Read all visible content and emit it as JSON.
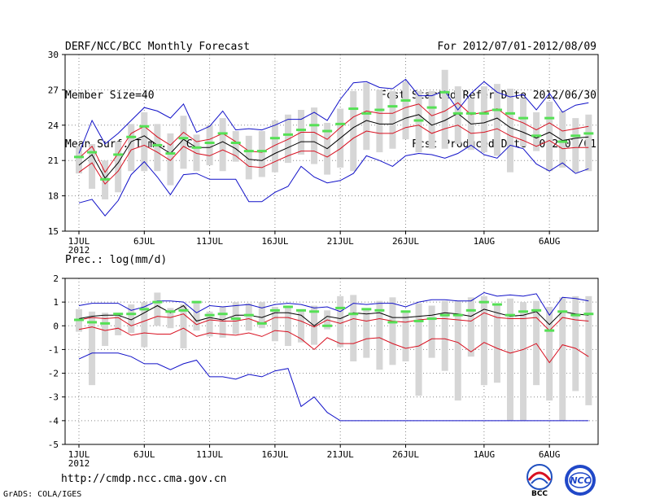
{
  "header": {
    "title": "DERF/NCC/BCC Monthly Forecast",
    "member": "Member Size=40",
    "variable": "Mean Surf. Temp.: °C",
    "period": "For 2012/07/01-2012/08/09",
    "started": "Fcst Started Refer Date 2012/06/30",
    "produced": "Fcst Produced Date 2012/07/01"
  },
  "footer": {
    "url": "http://cmdp.ncc.cma.gov.cn",
    "credit": "GrADS: COLA/IGES"
  },
  "logos": {
    "left_text": "BCC",
    "right_text": "NCC"
  },
  "colors": {
    "envelope": "#1010c8",
    "spread": "#d81020",
    "mean": "#000000",
    "median_mark": "#55e055",
    "box": "#d6d6d6",
    "grid": "#888888"
  },
  "chart_data": [
    {
      "type": "line",
      "title": "Mean Surf. Temp.: °C",
      "ylabel": "Mean Surf. Temp. (°C)",
      "ylim": [
        15,
        30
      ],
      "yticks": [
        "15",
        "18",
        "21",
        "24",
        "27",
        "30"
      ],
      "xticks": [
        "1JUL",
        "6JUL",
        "11JUL",
        "16JUL",
        "21JUL",
        "26JUL",
        "1AUG",
        "6AUG"
      ],
      "xtick_days": [
        1,
        6,
        11,
        16,
        21,
        26,
        32,
        37
      ],
      "year_label": "2012",
      "days": [
        1,
        2,
        3,
        4,
        5,
        6,
        7,
        8,
        9,
        10,
        11,
        12,
        13,
        14,
        15,
        16,
        17,
        18,
        19,
        20,
        21,
        22,
        23,
        24,
        25,
        26,
        27,
        28,
        29,
        30,
        31,
        32,
        33,
        34,
        35,
        36,
        37,
        38,
        39,
        40
      ],
      "grid": true,
      "series": [
        {
          "name": "max",
          "values": [
            17.4,
            17.7,
            16.3,
            17.6,
            19.8,
            20.9,
            19.6,
            18.1,
            19.8,
            19.9,
            19.4,
            19.4,
            19.4,
            17.5,
            17.5,
            18.3,
            18.8,
            20.5,
            19.6,
            19.1,
            19.3,
            19.9,
            21.4,
            21.0,
            20.5,
            21.4,
            21.6,
            21.5,
            21.2,
            21.6,
            22.3,
            21.5,
            21.2,
            22.3,
            22.0,
            20.7,
            20.1,
            20.8,
            19.9,
            20.3
          ]
        },
        {
          "name": "max_upper",
          "values": [
            21.6,
            24.4,
            22.4,
            23.3,
            24.4,
            25.5,
            25.2,
            24.6,
            25.8,
            23.4,
            23.9,
            25.2,
            23.6,
            23.7,
            23.6,
            24.0,
            24.5,
            24.5,
            25.1,
            24.4,
            26.2,
            27.6,
            27.7,
            27.2,
            27.1,
            27.9,
            26.5,
            26.5,
            26.9,
            25.3,
            26.7,
            27.7,
            26.8,
            26.4,
            26.6,
            25.3,
            26.7,
            25.1,
            25.7,
            25.9
          ]
        },
        {
          "name": "p25",
          "values": [
            20.0,
            20.8,
            19.0,
            20.1,
            21.9,
            22.3,
            21.7,
            21.0,
            22.2,
            21.6,
            21.4,
            21.9,
            21.4,
            20.5,
            20.4,
            20.9,
            21.4,
            21.8,
            21.8,
            21.3,
            22.0,
            22.9,
            23.5,
            23.3,
            23.3,
            23.8,
            24.0,
            23.3,
            23.7,
            24.0,
            23.3,
            23.4,
            23.7,
            23.1,
            22.7,
            22.2,
            22.7,
            22.0,
            22.1,
            22.1
          ]
        },
        {
          "name": "p75",
          "values": [
            21.2,
            22.2,
            20.0,
            21.6,
            23.3,
            23.9,
            23.0,
            22.3,
            23.4,
            22.6,
            22.8,
            23.3,
            22.6,
            21.8,
            21.7,
            22.3,
            22.8,
            23.4,
            23.4,
            22.8,
            23.8,
            24.7,
            25.2,
            25.0,
            25.0,
            25.5,
            25.8,
            24.8,
            25.2,
            25.9,
            24.9,
            25.1,
            25.4,
            24.6,
            24.2,
            23.6,
            24.2,
            23.5,
            23.7,
            23.9
          ]
        },
        {
          "name": "mean",
          "values": [
            20.6,
            21.5,
            19.5,
            20.8,
            22.6,
            23.1,
            22.3,
            21.6,
            22.8,
            22.1,
            22.1,
            22.6,
            22.0,
            21.1,
            21.0,
            21.6,
            22.1,
            22.6,
            22.6,
            22.0,
            22.9,
            23.8,
            24.4,
            24.1,
            24.1,
            24.6,
            24.9,
            24.0,
            24.4,
            25.0,
            24.1,
            24.2,
            24.6,
            23.8,
            23.4,
            22.9,
            23.4,
            22.7,
            22.9,
            23.0
          ]
        },
        {
          "name": "median",
          "values": [
            21.3,
            21.7,
            19.4,
            21.5,
            23.0,
            23.9,
            22.3,
            21.6,
            22.9,
            22.1,
            22.5,
            23.3,
            22.5,
            21.8,
            21.8,
            22.9,
            23.2,
            23.6,
            24.0,
            23.5,
            24.1,
            25.4,
            25.0,
            25.3,
            25.6,
            26.1,
            24.4,
            25.5,
            26.8,
            25.0,
            25.0,
            25.0,
            25.3,
            25.0,
            24.6,
            23.1,
            24.6,
            22.6,
            23.1,
            23.3
          ]
        },
        {
          "name": "box_low",
          "values": [
            19.9,
            18.6,
            17.7,
            18.3,
            20.1,
            20.1,
            20.1,
            18.9,
            20.3,
            20.1,
            20.6,
            20.1,
            20.9,
            19.4,
            19.6,
            20.0,
            20.8,
            21.5,
            20.7,
            19.8,
            20.4,
            20.1,
            21.9,
            21.7,
            22.0,
            22.8,
            21.7,
            22.0,
            22.0,
            22.4,
            21.9,
            21.7,
            21.4,
            20.0,
            22.2,
            21.8,
            20.1,
            20.4,
            20.0,
            20.1
          ]
        },
        {
          "name": "box_high",
          "values": [
            22.2,
            22.4,
            21.0,
            22.6,
            24.1,
            25.1,
            24.1,
            23.3,
            24.8,
            23.2,
            24.0,
            24.6,
            23.5,
            23.1,
            23.5,
            24.4,
            24.9,
            25.3,
            25.5,
            24.2,
            25.4,
            26.9,
            27.6,
            27.0,
            26.9,
            27.7,
            26.9,
            26.9,
            28.7,
            27.3,
            26.3,
            27.3,
            27.5,
            27.1,
            26.3,
            25.1,
            26.0,
            25.2,
            24.6,
            24.9
          ]
        }
      ]
    },
    {
      "type": "line",
      "title": "Prec.: log(mm/d)",
      "ylabel": "Prec. log(mm/d)",
      "ylim": [
        -5,
        2
      ],
      "yticks": [
        "-5",
        "-4",
        "-3",
        "-2",
        "-1",
        "0",
        "1",
        "2"
      ],
      "xticks": [
        "1JUL",
        "6JUL",
        "11JUL",
        "16JUL",
        "21JUL",
        "26JUL",
        "1AUG",
        "6AUG"
      ],
      "xtick_days": [
        1,
        6,
        11,
        16,
        21,
        26,
        32,
        37
      ],
      "year_label": "2012",
      "days": [
        1,
        2,
        3,
        4,
        5,
        6,
        7,
        8,
        9,
        10,
        11,
        12,
        13,
        14,
        15,
        16,
        17,
        18,
        19,
        20,
        21,
        22,
        23,
        24,
        25,
        26,
        27,
        28,
        29,
        30,
        31,
        32,
        33,
        34,
        35,
        36,
        37,
        38,
        39,
        40
      ],
      "grid": true,
      "series": [
        {
          "name": "min",
          "values": [
            -1.4,
            -1.15,
            -1.15,
            -1.15,
            -1.3,
            -1.6,
            -1.6,
            -1.85,
            -1.6,
            -1.45,
            -2.15,
            -2.15,
            -2.25,
            -2.05,
            -2.15,
            -1.9,
            -1.8,
            -3.4,
            -3.0,
            -3.65,
            -4.0,
            -4.0,
            -4.0,
            -4.0,
            -4.0,
            -4.0,
            -4.0,
            -4.0,
            -4.0,
            -4.0,
            -4.0,
            -4.0,
            -4.0,
            -4.0,
            -4.0,
            -4.0,
            -4.0,
            -4.0,
            -4.0,
            -4.0
          ]
        },
        {
          "name": "max",
          "values": [
            0.85,
            0.95,
            0.95,
            0.95,
            0.65,
            0.8,
            1.05,
            1.05,
            1.0,
            0.55,
            0.85,
            0.8,
            0.85,
            0.9,
            0.75,
            0.9,
            0.95,
            0.9,
            0.75,
            0.8,
            0.6,
            0.95,
            0.9,
            0.95,
            0.95,
            0.8,
            1.0,
            1.1,
            1.1,
            1.05,
            1.05,
            1.4,
            1.25,
            1.3,
            1.25,
            1.35,
            0.45,
            1.2,
            1.15,
            1.05
          ]
        },
        {
          "name": "p25",
          "values": [
            -0.15,
            -0.05,
            -0.2,
            -0.1,
            -0.4,
            -0.3,
            -0.35,
            -0.35,
            -0.1,
            -0.45,
            -0.3,
            -0.35,
            -0.4,
            -0.3,
            -0.45,
            -0.2,
            -0.25,
            -0.55,
            -1.0,
            -0.5,
            -0.75,
            -0.75,
            -0.55,
            -0.5,
            -0.75,
            -0.95,
            -0.85,
            -0.55,
            -0.55,
            -0.7,
            -1.1,
            -0.7,
            -0.95,
            -1.15,
            -1.0,
            -0.75,
            -1.55,
            -0.8,
            -0.95,
            -1.3
          ]
        },
        {
          "name": "p75",
          "values": [
            0.25,
            0.35,
            0.3,
            0.35,
            0.0,
            0.2,
            0.4,
            0.35,
            0.5,
            0.05,
            0.25,
            0.2,
            0.2,
            0.3,
            0.1,
            0.35,
            0.35,
            0.2,
            -0.05,
            0.25,
            0.1,
            0.3,
            0.2,
            0.3,
            0.2,
            0.15,
            0.25,
            0.3,
            0.3,
            0.25,
            0.2,
            0.55,
            0.35,
            0.3,
            0.3,
            0.35,
            -0.2,
            0.35,
            0.25,
            0.2
          ]
        },
        {
          "name": "mean",
          "values": [
            0.3,
            0.4,
            0.45,
            0.45,
            0.25,
            0.55,
            0.85,
            0.55,
            0.85,
            0.2,
            0.35,
            0.25,
            0.45,
            0.45,
            0.35,
            0.55,
            0.55,
            0.45,
            0.0,
            0.4,
            0.3,
            0.55,
            0.5,
            0.55,
            0.35,
            0.35,
            0.4,
            0.45,
            0.55,
            0.5,
            0.4,
            0.7,
            0.55,
            0.4,
            0.45,
            0.6,
            0.05,
            0.6,
            0.5,
            0.45
          ]
        },
        {
          "name": "median",
          "values": [
            0.25,
            0.15,
            0.1,
            0.5,
            0.5,
            0.7,
            1.0,
            0.6,
            0.65,
            1.0,
            0.45,
            0.5,
            0.3,
            0.45,
            0.1,
            0.65,
            0.8,
            0.65,
            0.6,
            0.0,
            0.75,
            0.5,
            0.7,
            0.65,
            0.15,
            0.6,
            0.2,
            0.3,
            0.45,
            0.45,
            0.65,
            1.0,
            0.9,
            0.45,
            0.6,
            0.65,
            -0.2,
            0.6,
            0.45,
            0.5
          ]
        },
        {
          "name": "box_low",
          "values": [
            -0.25,
            -2.5,
            -0.85,
            -0.4,
            -0.3,
            -0.9,
            0.0,
            -0.1,
            -0.95,
            -0.2,
            -0.45,
            -0.5,
            -0.35,
            -0.2,
            -0.1,
            -0.65,
            -0.85,
            -0.7,
            -0.8,
            -0.15,
            -0.9,
            -1.5,
            -1.35,
            -1.85,
            -1.65,
            -1.5,
            -2.95,
            -1.35,
            -1.9,
            -3.15,
            -1.3,
            -2.5,
            -2.4,
            -4.0,
            -4.0,
            -2.5,
            -3.15,
            -4.0,
            -2.75,
            -3.35
          ]
        },
        {
          "name": "box_high",
          "values": [
            0.7,
            0.6,
            0.55,
            0.55,
            0.9,
            1.0,
            1.4,
            0.75,
            0.9,
            1.05,
            0.6,
            0.8,
            1.0,
            0.95,
            1.0,
            0.8,
            0.75,
            0.7,
            0.85,
            0.65,
            1.25,
            1.3,
            0.75,
            1.05,
            1.2,
            0.65,
            0.95,
            0.85,
            1.05,
            1.05,
            1.2,
            1.25,
            0.95,
            1.15,
            1.0,
            1.05,
            0.8,
            1.2,
            1.25,
            1.25
          ]
        }
      ]
    }
  ]
}
